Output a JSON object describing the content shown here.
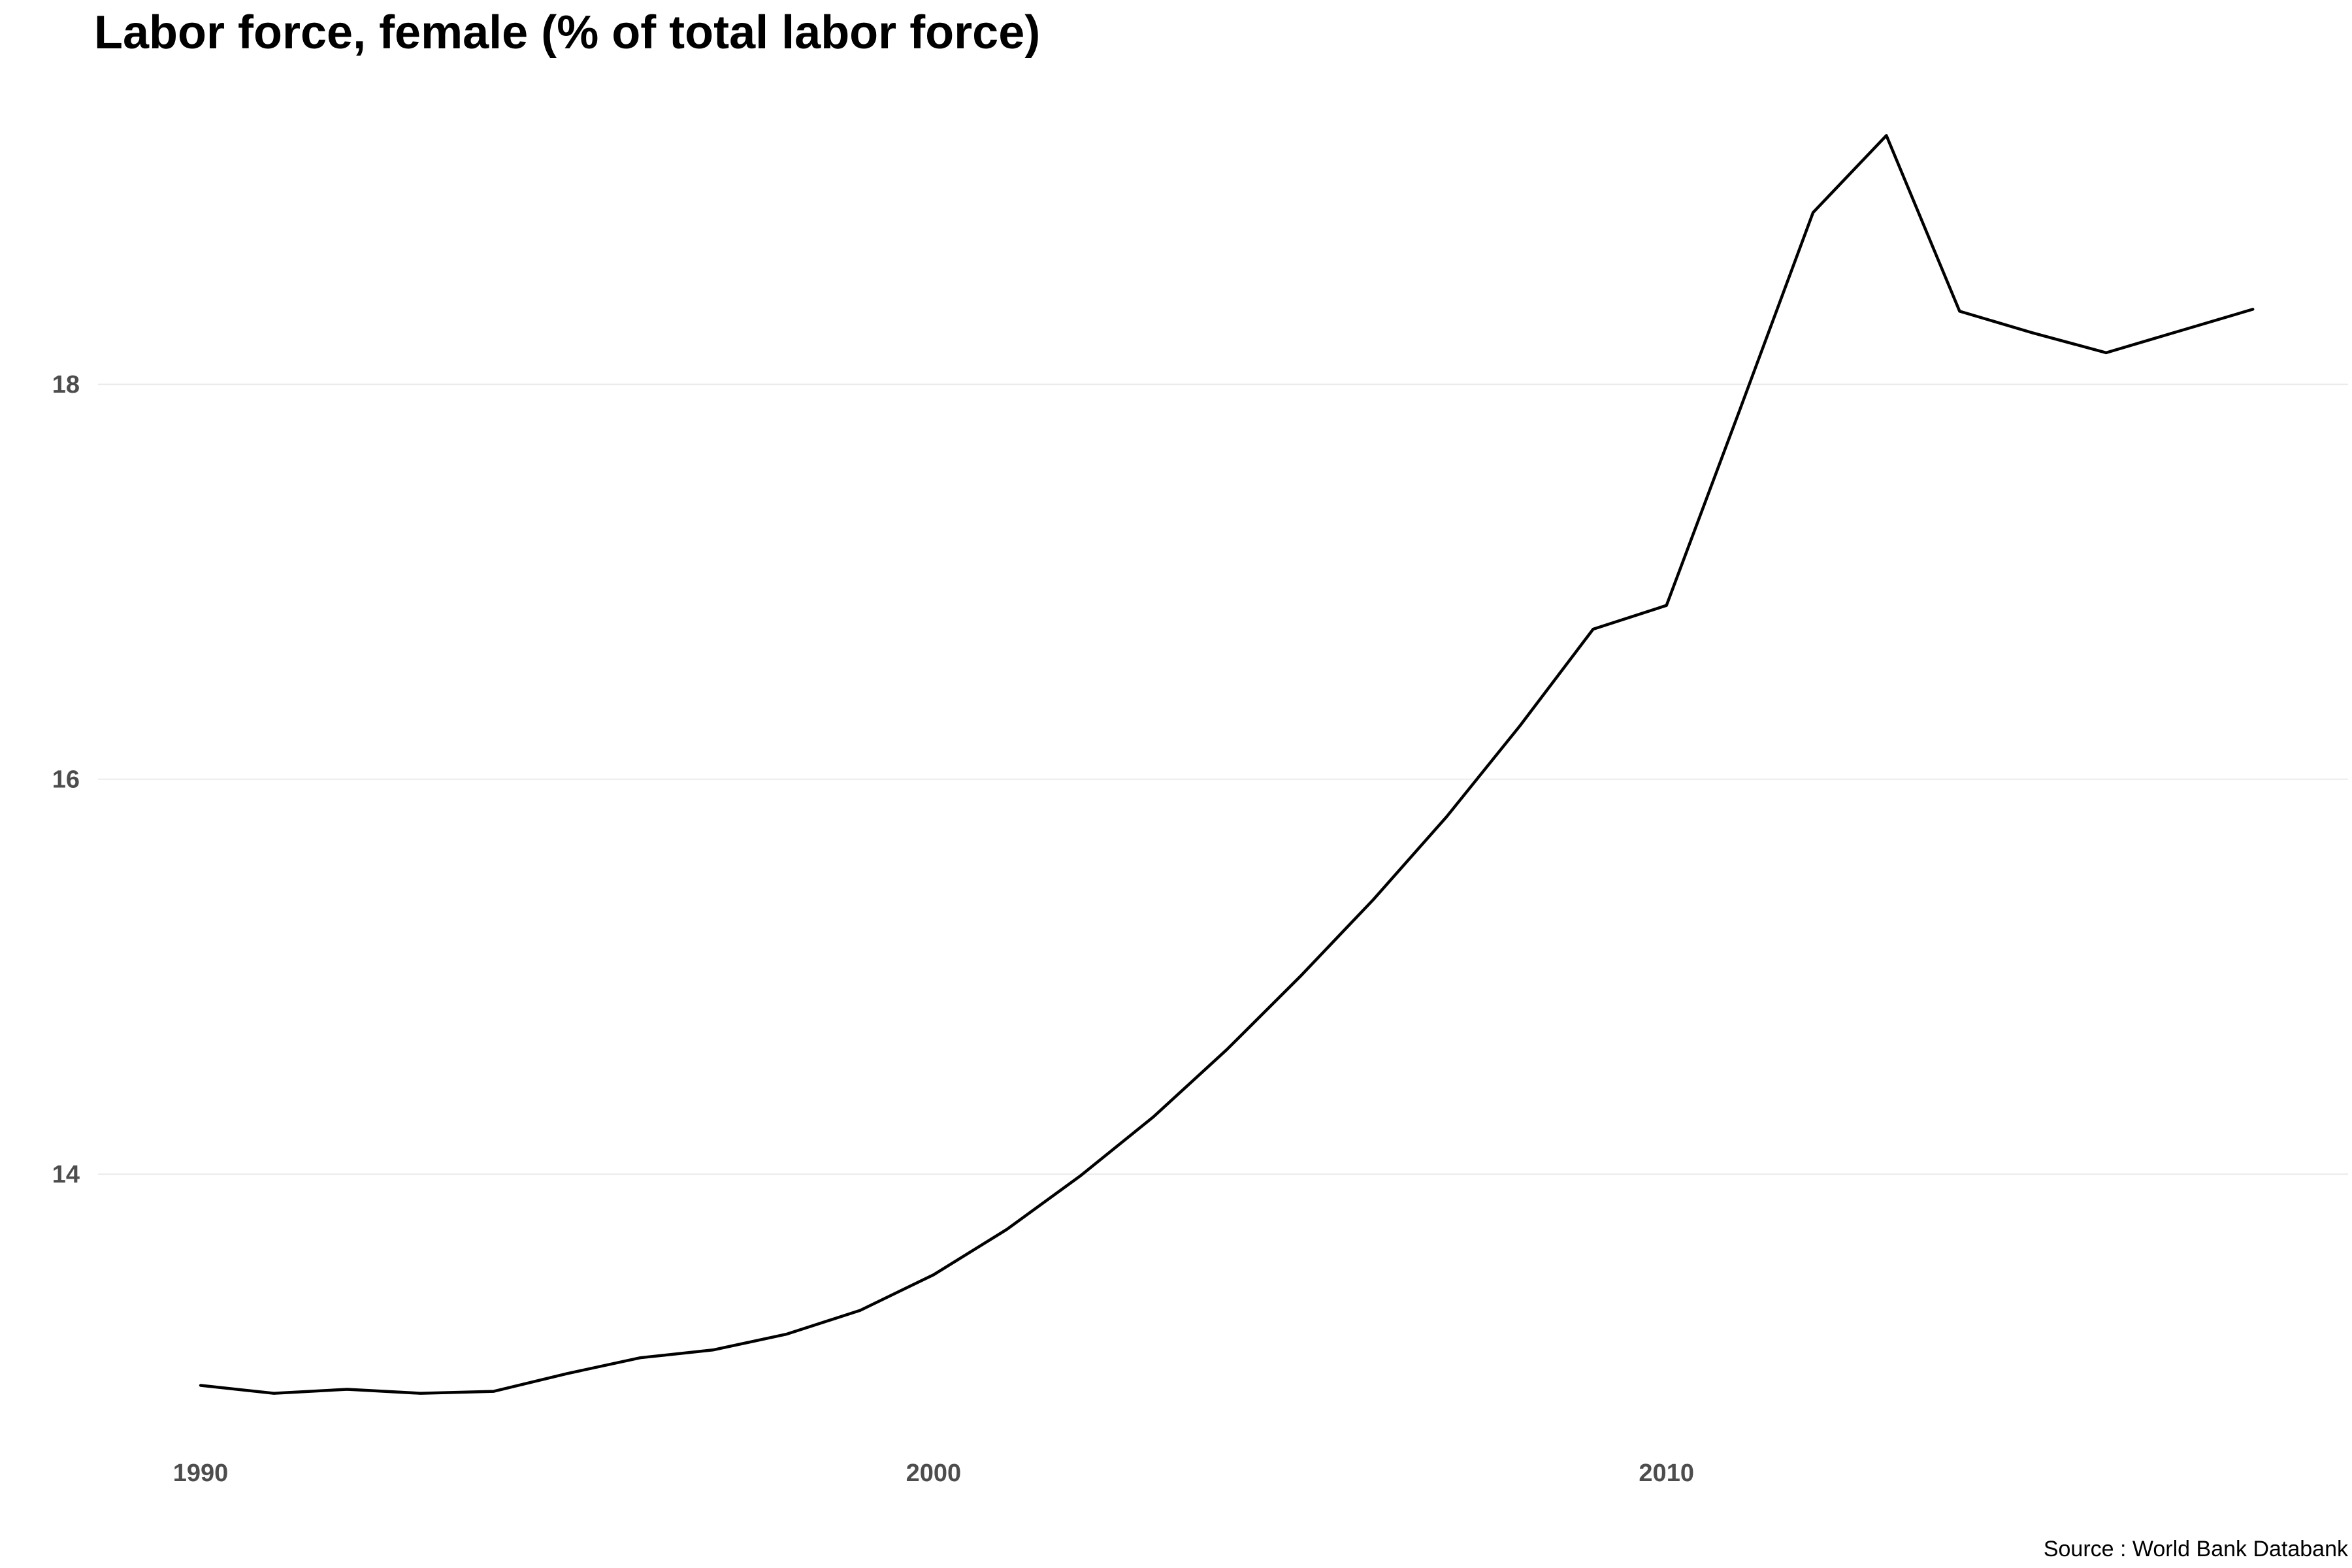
{
  "chart_data": {
    "type": "line",
    "title": "Labor force, female (% of total labor force)",
    "caption": "Source : World Bank Databank",
    "xlabel": "",
    "ylabel": "",
    "xlim": [
      1988.6,
      2019.3
    ],
    "ylim": [
      12.7,
      19.45
    ],
    "x_ticks": [
      1990,
      2000,
      2010
    ],
    "x_tick_labels": [
      "1990",
      "2000",
      "2010"
    ],
    "y_ticks": [
      14,
      16,
      18
    ],
    "y_tick_labels": [
      "14",
      "16",
      "18"
    ],
    "grid": "horizontal-major",
    "legend": "none",
    "series_color": "#000000",
    "grid_color": "#ebebeb",
    "series": [
      {
        "x": [
          1990,
          1991,
          1992,
          1993,
          1994,
          1995,
          1996,
          1997,
          1998,
          1999,
          2000,
          2001,
          2002,
          2003,
          2004,
          2005,
          2006,
          2007,
          2008,
          2009,
          2010,
          2011,
          2012,
          2013,
          2014,
          2015,
          2016,
          2017,
          2018
        ],
        "values": [
          12.93,
          12.89,
          12.91,
          12.89,
          12.9,
          12.99,
          13.07,
          13.11,
          13.19,
          13.31,
          13.49,
          13.72,
          13.99,
          14.29,
          14.63,
          15.0,
          15.39,
          15.81,
          16.27,
          16.76,
          16.88,
          17.87,
          18.87,
          19.26,
          18.37,
          18.26,
          18.16,
          18.27,
          18.38
        ]
      }
    ]
  }
}
